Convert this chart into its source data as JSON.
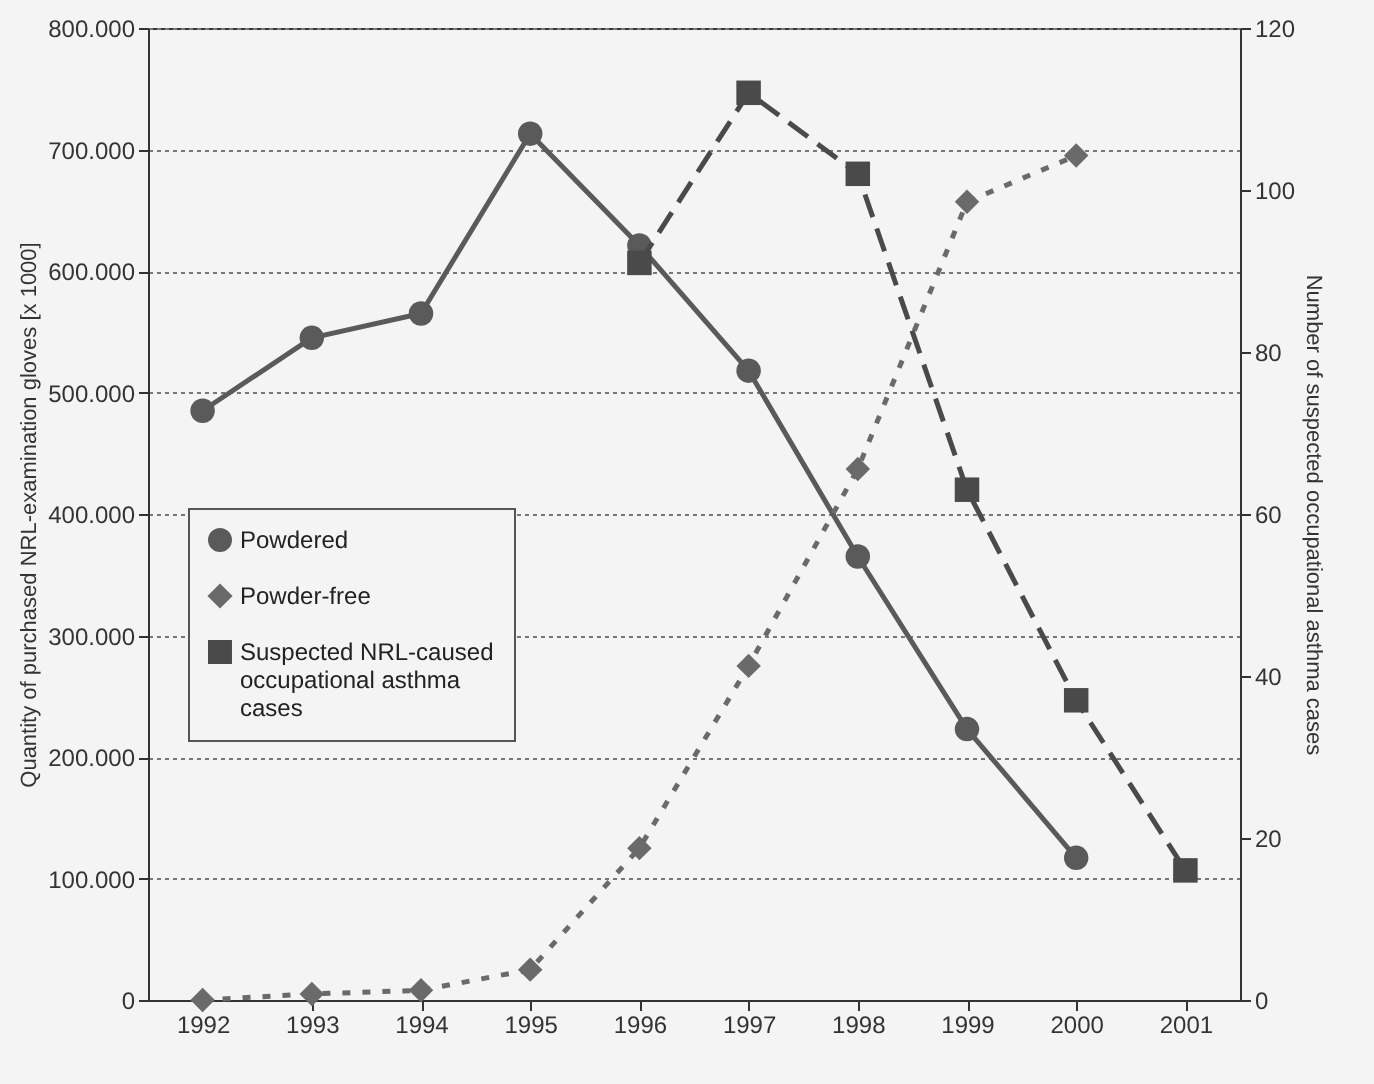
{
  "chart_data": {
    "type": "line",
    "categories": [
      "1992",
      "1993",
      "1994",
      "1995",
      "1996",
      "1997",
      "1998",
      "1999",
      "2000",
      "2001"
    ],
    "ylabel": "Quantity of purchased NRL-examination gloves [x 1000]",
    "y2label": "Number of suspected occupational asthma cases",
    "ylim": [
      0,
      800000
    ],
    "yticks": [
      {
        "value": 0,
        "label": "0"
      },
      {
        "value": 100000,
        "label": "100.000"
      },
      {
        "value": 200000,
        "label": "200.000"
      },
      {
        "value": 300000,
        "label": "300.000"
      },
      {
        "value": 400000,
        "label": "400.000"
      },
      {
        "value": 500000,
        "label": "500.000"
      },
      {
        "value": 600000,
        "label": "600.000"
      },
      {
        "value": 700000,
        "label": "700.000"
      },
      {
        "value": 800000,
        "label": "800.000"
      }
    ],
    "y2lim": [
      0,
      120
    ],
    "y2ticks": [
      0,
      20,
      40,
      60,
      80,
      100,
      120
    ],
    "grid": "y",
    "legend": "left",
    "series": [
      {
        "name": "Powdered",
        "color": "#5a5a5a",
        "marker": "circle",
        "line_style": "solid",
        "values": [
          485000,
          545000,
          565000,
          713000,
          621000,
          518000,
          365000,
          223000,
          117000,
          null
        ]
      },
      {
        "name": "Powder-free",
        "color": "#6a6a6a",
        "marker": "diamond",
        "line_style": "dotted",
        "values": [
          0,
          5000,
          8000,
          25000,
          125000,
          275000,
          437000,
          657000,
          695000,
          null
        ]
      },
      {
        "name": "Suspected NRL-caused occupational asthma cases",
        "color": "#4a4a4a",
        "marker": "square",
        "line_style": "dashed",
        "axis": "y2",
        "values": [
          null,
          null,
          null,
          null,
          91,
          112,
          102,
          63,
          37,
          16
        ]
      }
    ]
  }
}
